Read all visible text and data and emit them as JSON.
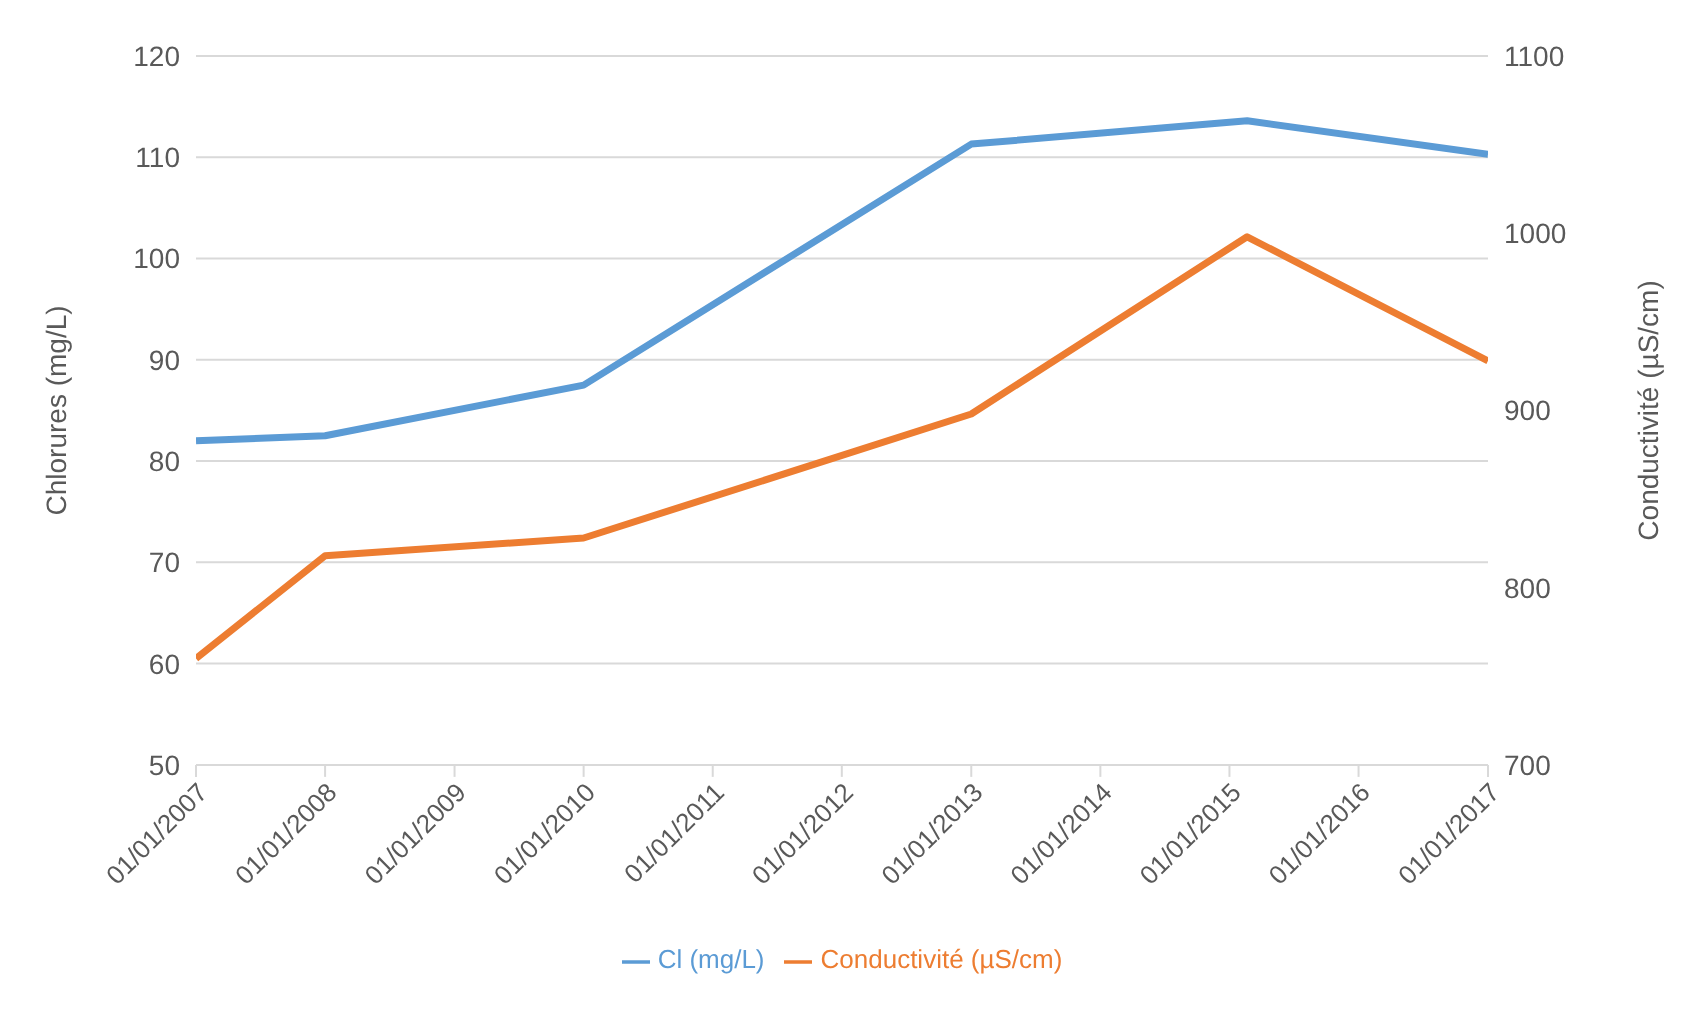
{
  "chart_data": {
    "type": "line",
    "ylabel": "Chlorures (mg/L)",
    "y2label": "Conductivité (µS/cm)",
    "x": [
      "2007-01-01",
      "2008-01-01",
      "2010-01-01",
      "2013-01-01",
      "2015-02-20",
      "2017-01-01"
    ],
    "series": [
      {
        "name": "Cl (mg/L)",
        "color": "#5b9bd5",
        "values": [
          82,
          82.5,
          87.5,
          111.3,
          113.6,
          110.3
        ]
      },
      {
        "name": "Conductivité (µS/cm)",
        "color": "#ed7d31",
        "axis": "y2",
        "values": [
          760,
          818,
          828,
          898,
          998,
          928
        ]
      }
    ],
    "xlim": [
      "2007-01-01",
      "2017-01-01"
    ],
    "xticks": [
      {
        "value": "2007-01-01",
        "label": "01/01/2007"
      },
      {
        "value": "2008-01-01",
        "label": "01/01/2008"
      },
      {
        "value": "2009-01-01",
        "label": "01/01/2009"
      },
      {
        "value": "2010-01-01",
        "label": "01/01/2010"
      },
      {
        "value": "2011-01-01",
        "label": "01/01/2011"
      },
      {
        "value": "2012-01-01",
        "label": "01/01/2012"
      },
      {
        "value": "2013-01-01",
        "label": "01/01/2013"
      },
      {
        "value": "2014-01-01",
        "label": "01/01/2014"
      },
      {
        "value": "2015-01-01",
        "label": "01/01/2015"
      },
      {
        "value": "2016-01-01",
        "label": "01/01/2016"
      },
      {
        "value": "2017-01-01",
        "label": "01/01/2017"
      }
    ],
    "ylim": [
      50,
      120
    ],
    "yticks": [
      50,
      60,
      70,
      80,
      90,
      100,
      110,
      120
    ],
    "y2lim": [
      700,
      1100
    ],
    "y2ticks": [
      700,
      800,
      900,
      1000,
      1100
    ],
    "grid": "y",
    "legend": "bottom",
    "marker": "none",
    "line_style": "solid"
  }
}
